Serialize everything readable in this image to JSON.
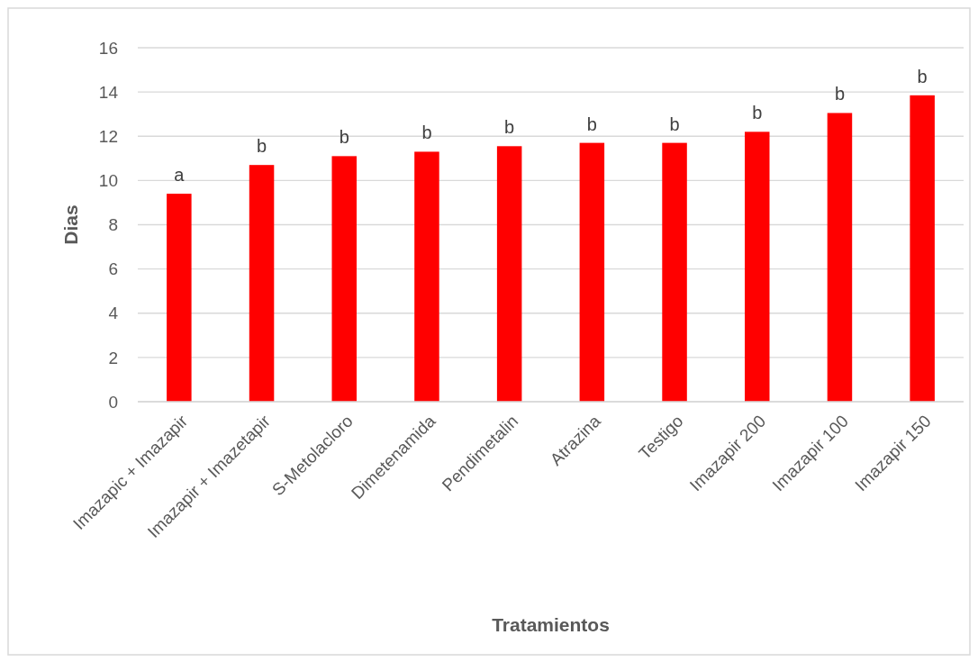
{
  "chart_data": {
    "type": "bar",
    "xlabel": "Tratamientos",
    "ylabel": "Dias",
    "categories": [
      "Imazapic + Imazapir",
      "Imazapir + Imazetapir",
      "S-Metolacloro",
      "Dimetenamida",
      "Pendimetalin",
      "Atrazina",
      "Testigo",
      "Imazapir 200",
      "Imazapir 100",
      "Imazapir 150"
    ],
    "values": [
      9.4,
      10.7,
      11.1,
      11.3,
      11.55,
      11.7,
      11.7,
      12.2,
      13.05,
      13.85
    ],
    "color": "#ff0000",
    "ylim": [
      0,
      16
    ],
    "yticks": [
      0,
      2,
      4,
      6,
      8,
      10,
      12,
      14,
      16
    ],
    "grid": "y",
    "annotations": [
      {
        "text": "a",
        "x": "Imazapic + Imazapir",
        "y": 9.4
      },
      {
        "text": "b",
        "x": "Imazapir + Imazetapir",
        "y": 10.7
      },
      {
        "text": "b",
        "x": "S-Metolacloro",
        "y": 11.1
      },
      {
        "text": "b",
        "x": "Dimetenamida",
        "y": 11.3
      },
      {
        "text": "b",
        "x": "Pendimetalin",
        "y": 11.55
      },
      {
        "text": "b",
        "x": "Atrazina",
        "y": 11.7
      },
      {
        "text": "b",
        "x": "Testigo",
        "y": 11.7
      },
      {
        "text": "b",
        "x": "Imazapir 200",
        "y": 12.2
      },
      {
        "text": "b",
        "x": "Imazapir 100",
        "y": 13.05
      },
      {
        "text": "b",
        "x": "Imazapir 150",
        "y": 13.85
      }
    ]
  }
}
